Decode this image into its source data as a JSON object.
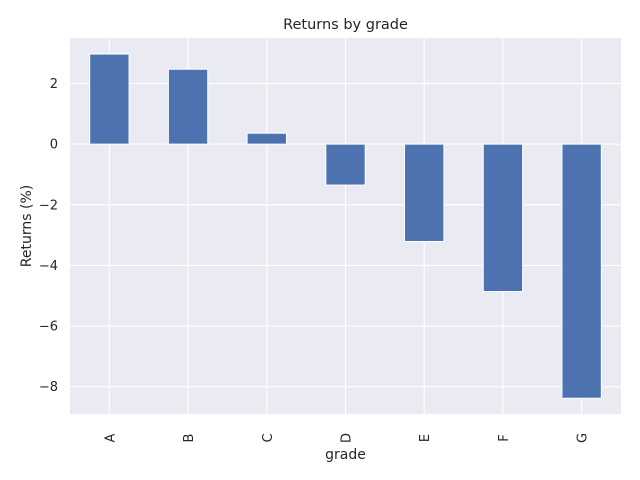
{
  "chart_data": {
    "type": "bar",
    "title": "Returns by grade",
    "xlabel": "grade",
    "ylabel": "Returns (%)",
    "categories": [
      "A",
      "B",
      "C",
      "D",
      "E",
      "F",
      "G"
    ],
    "values": [
      2.97,
      2.47,
      0.36,
      -1.35,
      -3.21,
      -4.86,
      -8.38
    ],
    "ylim": [
      -8.9,
      3.5
    ],
    "yticks": [
      2,
      0,
      -2,
      -4,
      -6,
      -8
    ],
    "ytick_labels": [
      "2",
      "0",
      "−2",
      "−4",
      "−6",
      "−8"
    ],
    "grid": true,
    "colors": {
      "bar": "#4c72b0",
      "bar_edge": "#ffffff",
      "plot_bg": "#eaeaf2",
      "grid": "#ffffff",
      "text": "#262626"
    }
  }
}
